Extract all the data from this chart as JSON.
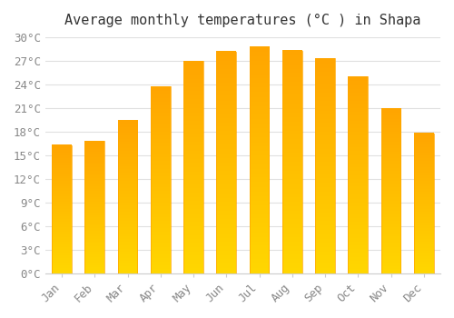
{
  "title": "Average monthly temperatures (°C ) in Shapa",
  "months": [
    "Jan",
    "Feb",
    "Mar",
    "Apr",
    "May",
    "Jun",
    "Jul",
    "Aug",
    "Sep",
    "Oct",
    "Nov",
    "Dec"
  ],
  "values": [
    16.3,
    16.8,
    19.5,
    23.7,
    27.0,
    28.2,
    28.8,
    28.3,
    27.3,
    25.0,
    21.0,
    17.8
  ],
  "bar_color_top": "#FFA500",
  "bar_color_bottom": "#FFD700",
  "ylim": [
    0,
    30
  ],
  "ytick_step": 3,
  "background_color": "#ffffff",
  "grid_color": "#e0e0e0",
  "title_fontsize": 11,
  "tick_fontsize": 9,
  "font_color": "#888888"
}
